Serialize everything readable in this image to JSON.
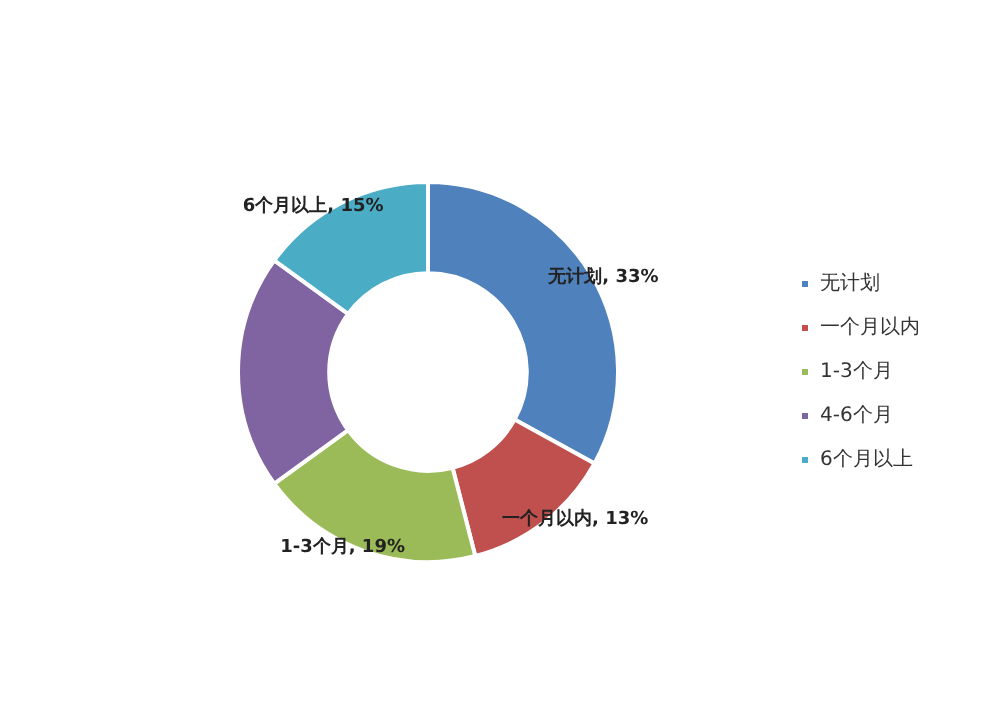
{
  "chart_data": {
    "type": "donut",
    "categories": [
      "无计划",
      "一个月以内",
      "1-3个月",
      "4-6个月",
      "6个月以上"
    ],
    "values": [
      33,
      13,
      19,
      20,
      15
    ],
    "colors": [
      "#4f81bd",
      "#c0504d",
      "#9bbb59",
      "#8064a2",
      "#4bacc6"
    ],
    "value_labels": [
      "无计划, 33%",
      "一个月以内, 13%",
      "1-3个月, 19%",
      null,
      "6个月以上, 15%"
    ],
    "legend": "right"
  }
}
